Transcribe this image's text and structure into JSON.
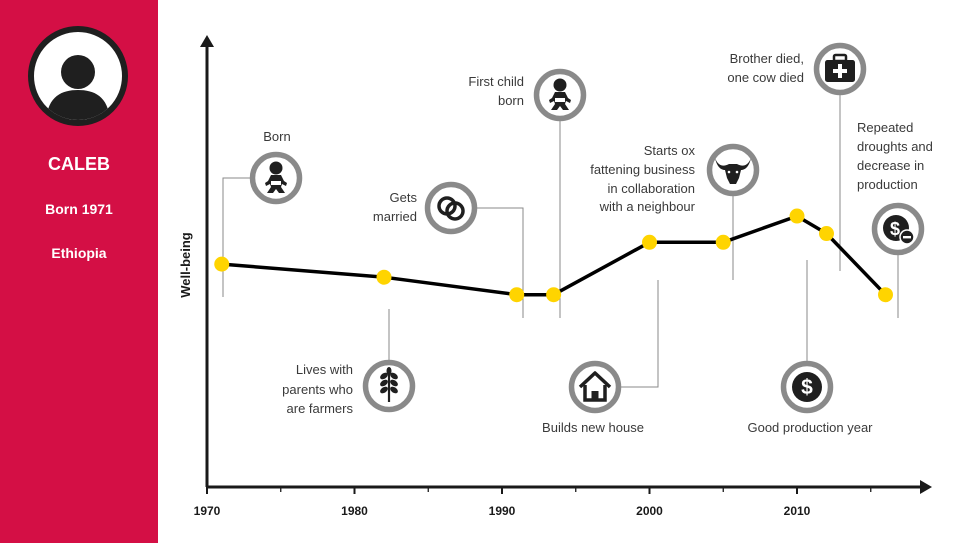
{
  "profile": {
    "name": "CALEB",
    "born": "Born 1971",
    "country": "Ethiopia",
    "accent_color": "#d40f45"
  },
  "chart_data": {
    "type": "line",
    "ylabel": "Well-being",
    "xlabel": "",
    "xlim": [
      1970,
      2018
    ],
    "ylim": [
      0,
      10
    ],
    "x_ticks": [
      1970,
      1980,
      1990,
      2000,
      2010
    ],
    "minor_tick_step": 5,
    "grid": false,
    "line_color": "#000000",
    "point_color": "#ffd400",
    "series": [
      {
        "x": [
          1971,
          1982,
          1991,
          1993.5,
          2000,
          2005,
          2010,
          2012,
          2016
        ],
        "y": [
          5.1,
          4.8,
          4.4,
          4.4,
          5.6,
          5.6,
          6.2,
          5.8,
          4.4
        ]
      }
    ],
    "events": [
      {
        "year": 1971,
        "label": "Born",
        "icon": "baby-icon",
        "side": "above"
      },
      {
        "year": 1982,
        "label": "Lives with parents who are farmers",
        "icon": "wheat-icon",
        "side": "below"
      },
      {
        "year": 1991,
        "label": "Gets married",
        "icon": "rings-icon",
        "side": "above"
      },
      {
        "year": 1993.5,
        "label": "First child born",
        "icon": "baby-icon",
        "side": "above"
      },
      {
        "year": 2000,
        "label": "Builds new house",
        "icon": "house-icon",
        "side": "below"
      },
      {
        "year": 2005,
        "label": "Starts ox fattening business in collaboration with a neighbour",
        "icon": "ox-icon",
        "side": "above"
      },
      {
        "year": 2010,
        "label": "Good production year",
        "icon": "dollar-icon",
        "side": "below"
      },
      {
        "year": 2012,
        "label": "Brother died, one cow died",
        "icon": "medical-kit-icon",
        "side": "above"
      },
      {
        "year": 2016,
        "label": "Repeated droughts and decrease in production",
        "icon": "money-decrease-icon",
        "side": "above"
      }
    ]
  }
}
